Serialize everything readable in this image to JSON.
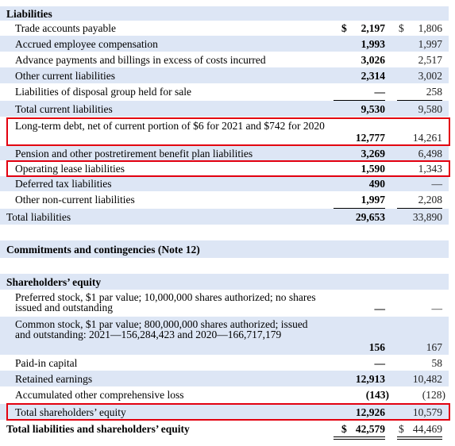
{
  "sections": {
    "liabilities": "Liabilities",
    "commitments": "Commitments and contingencies (Note 12)",
    "equity": "Shareholders’ equity"
  },
  "rows": {
    "trade_payable": {
      "label": "Trade accounts payable",
      "v2021": "2,197",
      "v2020": "1,806"
    },
    "accrued_comp": {
      "label": "Accrued employee compensation",
      "v2021": "1,993",
      "v2020": "1,997"
    },
    "advance_payments": {
      "label": "Advance payments and billings in excess of costs incurred",
      "v2021": "3,026",
      "v2020": "2,517"
    },
    "other_current": {
      "label": "Other current liabilities",
      "v2021": "2,314",
      "v2020": "3,002"
    },
    "disposal_group": {
      "label": "Liabilities of disposal group held for sale",
      "v2021": "—",
      "v2020": "258"
    },
    "total_current": {
      "label": "Total current liabilities",
      "v2021": "9,530",
      "v2020": "9,580"
    },
    "long_term_debt": {
      "label": "Long-term debt, net of current portion of $6 for 2021 and $742 for 2020",
      "v2021": "12,777",
      "v2020": "14,261"
    },
    "pension": {
      "label": "Pension and other postretirement benefit plan liabilities",
      "v2021": "3,269",
      "v2020": "6,498"
    },
    "operating_lease": {
      "label": "Operating lease liabilities",
      "v2021": "1,590",
      "v2020": "1,343"
    },
    "deferred_tax": {
      "label": "Deferred tax liabilities",
      "v2021": "490",
      "v2020": "—"
    },
    "other_noncurrent": {
      "label": "Other non-current liabilities",
      "v2021": "1,997",
      "v2020": "2,208"
    },
    "total_liabilities": {
      "label": "Total liabilities",
      "v2021": "29,653",
      "v2020": "33,890"
    },
    "preferred_stock": {
      "label": "Preferred stock, $1 par value; 10,000,000 shares authorized; no shares issued and outstanding",
      "v2021": "—",
      "v2020": "—"
    },
    "common_stock": {
      "label": "Common stock, $1 par value; 800,000,000 shares authorized; issued and outstanding: 2021—156,284,423 and 2020—166,717,179",
      "v2021": "156",
      "v2020": "167"
    },
    "paid_in_capital": {
      "label": "Paid-in capital",
      "v2021": "—",
      "v2020": "58"
    },
    "retained_earnings": {
      "label": "Retained earnings",
      "v2021": "12,913",
      "v2020": "10,482"
    },
    "aoci": {
      "label": "Accumulated other comprehensive loss",
      "v2021": "(143)",
      "v2020": "(128)"
    },
    "total_equity": {
      "label": "Total shareholders’ equity",
      "v2021": "12,926",
      "v2020": "10,579"
    },
    "total_liab_equity": {
      "label": "Total liabilities and shareholders’ equity",
      "v2021": "42,579",
      "v2020": "44,469"
    }
  },
  "currency_symbol": "$",
  "highlight_color": "#e3000f",
  "band_color": "#dde6f5"
}
